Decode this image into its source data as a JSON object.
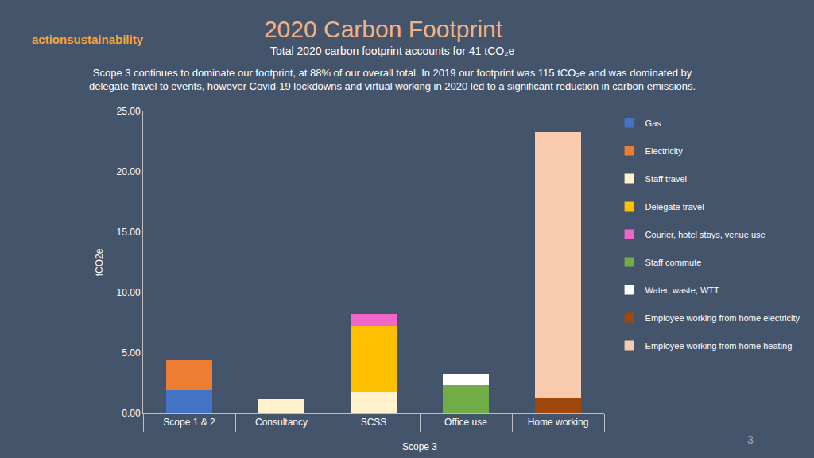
{
  "chart_data": {
    "type": "bar",
    "stacked": true,
    "title": "2020 Carbon Footprint",
    "subtitle": "Total 2020 carbon footprint accounts for 41 tCO₂e",
    "description": [
      "Scope 3 continues to dominate our footprint, at 88% of our overall total. In 2019 our footprint was 115 tCO₂e and was dominated by",
      "delegate travel to events, however Covid-19 lockdowns and virtual working in 2020 led to a significant reduction in carbon emissions."
    ],
    "logo": "actionsustainability",
    "page_number": "3",
    "y_label": "tCO2e",
    "categories": [
      "Scope 1 & 2",
      "Consultancy",
      "SCSS",
      "Office use",
      "Home working"
    ],
    "annotations": [
      {
        "text": "Scope 3",
        "categories": [
          "Consultancy",
          "Home working"
        ]
      }
    ],
    "series": [
      {
        "name": "Gas",
        "color": "#4472c4",
        "values": [
          2.0,
          null,
          null,
          null,
          null
        ]
      },
      {
        "name": "Electricity",
        "color": "#ed7d31",
        "values": [
          2.4,
          null,
          null,
          null,
          null
        ]
      },
      {
        "name": "Staff travel",
        "color": "#fff2cc",
        "values": [
          null,
          1.2,
          1.75,
          null,
          null
        ]
      },
      {
        "name": "Delegate travel",
        "color": "#ffc000",
        "values": [
          null,
          null,
          5.5,
          null,
          null
        ]
      },
      {
        "name": "Courier, hotel stays, venue use",
        "color": "#f066c8",
        "values": [
          null,
          null,
          0.95,
          null,
          null
        ]
      },
      {
        "name": "Staff commute",
        "color": "#70ad47",
        "values": [
          null,
          null,
          null,
          2.35,
          null
        ]
      },
      {
        "name": "Water, waste, WTT",
        "color": "#ffffff",
        "values": [
          null,
          null,
          null,
          0.95,
          null
        ]
      },
      {
        "name": "Employee working from home electricity",
        "color": "#9e480e",
        "values": [
          null,
          null,
          null,
          null,
          1.3
        ]
      },
      {
        "name": "Employee working from home heating",
        "color": "#f8cbad",
        "values": [
          null,
          null,
          null,
          null,
          22.0
        ]
      }
    ],
    "ylim": [
      0,
      25
    ],
    "yticks": [
      {
        "value": 0,
        "label": "0.00"
      },
      {
        "value": 5,
        "label": "5.00"
      },
      {
        "value": 10,
        "label": "10.00"
      },
      {
        "value": 15,
        "label": "15.00"
      },
      {
        "value": 20,
        "label": "20.00"
      },
      {
        "value": 25,
        "label": "25.00"
      }
    ],
    "grid": false,
    "legend": "right"
  }
}
